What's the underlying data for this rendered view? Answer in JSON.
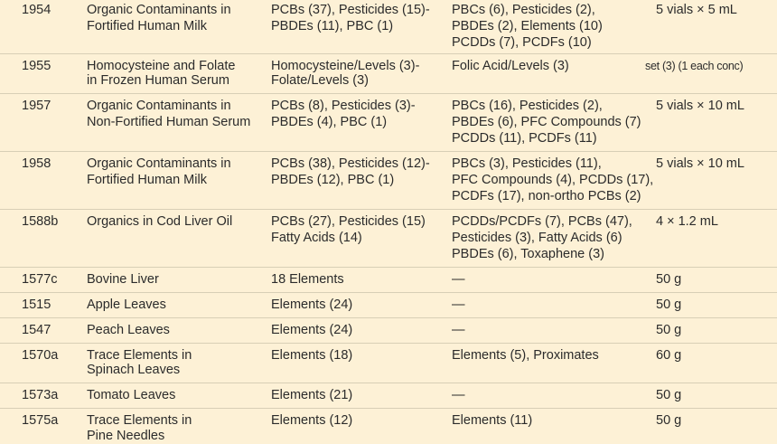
{
  "table": {
    "rows": [
      {
        "srm": "1954",
        "desc": [
          "Organic Contaminants in",
          "Fortified Human Milk"
        ],
        "certified": [
          "PCBs (37), Pesticides (15)-",
          "PBDEs (11), PBC (1)"
        ],
        "reference": [
          "PBCs (6), Pesticides (2),",
          "PBDEs (2), Elements (10)",
          "PCDDs (7), PCDFs (10)"
        ],
        "unit": "5 vials × 5 mL"
      },
      {
        "srm": "1955",
        "desc": [
          "Homocysteine and Folate",
          "in Frozen Human Serum"
        ],
        "certified": [
          "Homocysteine/Levels (3)-",
          "Folate/Levels (3)"
        ],
        "reference": [
          "Folic Acid/Levels (3)"
        ],
        "unit": "set (3) (1 each conc)"
      },
      {
        "srm": "1957",
        "desc": [
          "Organic Contaminants in",
          "Non-Fortified Human Serum"
        ],
        "certified": [
          "PCBs (8), Pesticides (3)-",
          "PBDEs (4), PBC (1)"
        ],
        "reference": [
          "PBCs (16), Pesticides (2),",
          "PBDEs (6), PFC Compounds (7)",
          "PCDDs (11), PCDFs (11)"
        ],
        "unit": "5 vials × 10 mL"
      },
      {
        "srm": "1958",
        "desc": [
          "Organic Contaminants in",
          "Fortified Human Milk"
        ],
        "certified": [
          "PCBs (38), Pesticides (12)-",
          "PBDEs (12), PBC (1)"
        ],
        "reference": [
          "PBCs (3), Pesticides (11),",
          "PFC Compounds (4), PCDDs (17),",
          "PCDFs (17), non-ortho PCBs (2)"
        ],
        "unit": "5 vials × 10 mL"
      },
      {
        "srm": "1588b",
        "desc": [
          "Organics in Cod Liver Oil"
        ],
        "certified": [
          "PCBs (27), Pesticides (15)",
          "Fatty Acids (14)"
        ],
        "reference": [
          "PCDDs/PCDFs (7), PCBs (47),",
          "Pesticides (3), Fatty Acids (6)",
          "PBDEs (6), Toxaphene (3)"
        ],
        "unit": "4 × 1.2 mL"
      },
      {
        "srm": "1577c",
        "desc": [
          "Bovine Liver"
        ],
        "certified": [
          "18 Elements"
        ],
        "reference": [
          "—"
        ],
        "unit": "50 g"
      },
      {
        "srm": "1515",
        "desc": [
          "Apple Leaves"
        ],
        "certified": [
          "Elements (24)"
        ],
        "reference": [
          "—"
        ],
        "unit": "50 g"
      },
      {
        "srm": "1547",
        "desc": [
          "Peach Leaves"
        ],
        "certified": [
          "Elements (24)"
        ],
        "reference": [
          "—"
        ],
        "unit": "50 g"
      },
      {
        "srm": "1570a",
        "desc": [
          "Trace Elements in",
          "Spinach Leaves"
        ],
        "certified": [
          "Elements (18)"
        ],
        "reference": [
          "Elements (5), Proximates"
        ],
        "unit": "60 g"
      },
      {
        "srm": "1573a",
        "desc": [
          "Tomato Leaves"
        ],
        "certified": [
          "Elements (21)"
        ],
        "reference": [
          "—"
        ],
        "unit": "50 g"
      },
      {
        "srm": "1575a",
        "desc": [
          "Trace Elements in",
          "Pine Needles"
        ],
        "certified": [
          "Elements (12)"
        ],
        "reference": [
          "Elements (11)"
        ],
        "unit": "50 g"
      }
    ]
  }
}
